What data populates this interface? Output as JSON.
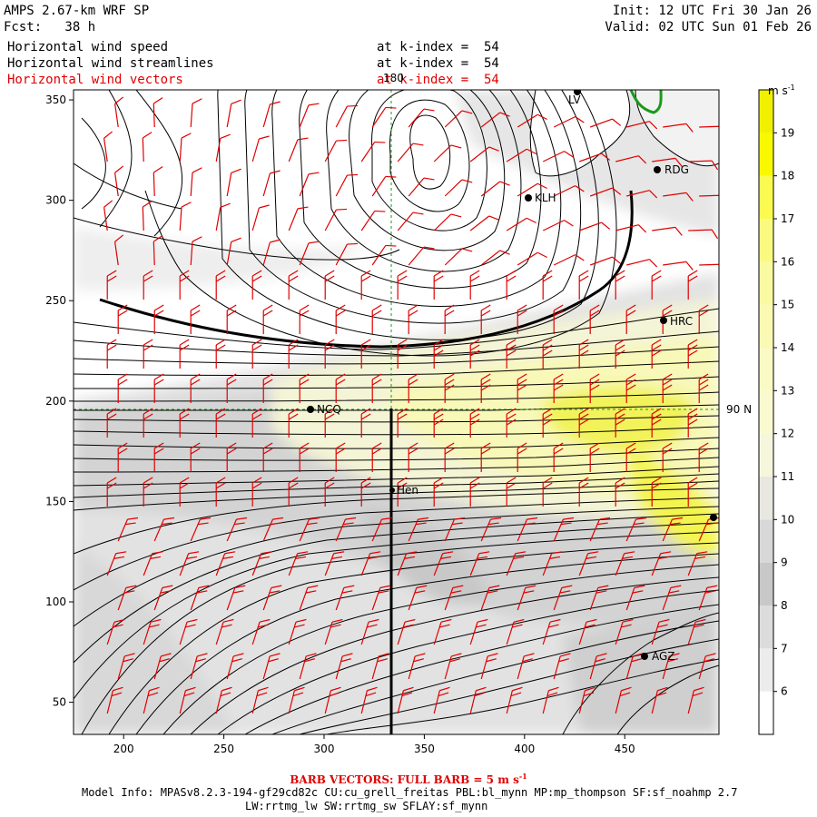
{
  "header": {
    "model": "AMPS 2.67-km WRF SP",
    "forecast": "Fcst:   38 h",
    "init": "Init: 12 UTC Fri 30 Jan 26",
    "valid": "Valid: 02 UTC Sun 01 Feb 26"
  },
  "fields": [
    {
      "label": "Horizontal wind speed",
      "level": "at k-index =  54",
      "color": "#000000"
    },
    {
      "label": "Horizontal wind streamlines",
      "level": "at k-index =  54",
      "color": "#000000"
    },
    {
      "label": "Horizontal wind vectors",
      "level": "at k-index =  54",
      "color": "#e00000"
    }
  ],
  "map": {
    "x_ticks": [
      "200",
      "250",
      "300",
      "350",
      "400",
      "450"
    ],
    "y_ticks": [
      "50",
      "100",
      "150",
      "200",
      "250",
      "300",
      "350"
    ],
    "lon_label": "180",
    "lat_label": "90 N",
    "stations": [
      "LV",
      "RDG",
      "KLH",
      "HRC",
      "NCQ",
      "Hen",
      "AGZ"
    ]
  },
  "colorbar": {
    "units": "m s",
    "units_exp": "-1",
    "ticks": [
      "6",
      "7",
      "8",
      "9",
      "10",
      "11",
      "12",
      "13",
      "14",
      "15",
      "16",
      "17",
      "18",
      "19"
    ],
    "colors": [
      "#ffffff",
      "#ececec",
      "#dcdcdc",
      "#c8c8c8",
      "#d8d8d8",
      "#e8e8e0",
      "#f6f6dc",
      "#fafad0",
      "#fafac4",
      "#fafab4",
      "#fafaa0",
      "#fafa80",
      "#fafa50",
      "#f8f800",
      "#f0f000"
    ]
  },
  "footer": {
    "barb_note": "BARB VECTORS:  FULL BARB = 5 m s",
    "barb_exp": "-1",
    "model_info": "Model Info: MPASv8.2.3-194-gf29cd82c CU:cu_grell_freitas PBL:bl_mynn MP:mp_thompson SF:sf_noahmp 2.7",
    "model_info2": "LW:rrtmg_lw SW:rrtmg_sw SFLAY:sf_mynn"
  },
  "colors": {
    "barb": "#e00000",
    "coast": "#000000",
    "green_contour": "#1a9a1a",
    "guide": "#1a9a1a"
  }
}
